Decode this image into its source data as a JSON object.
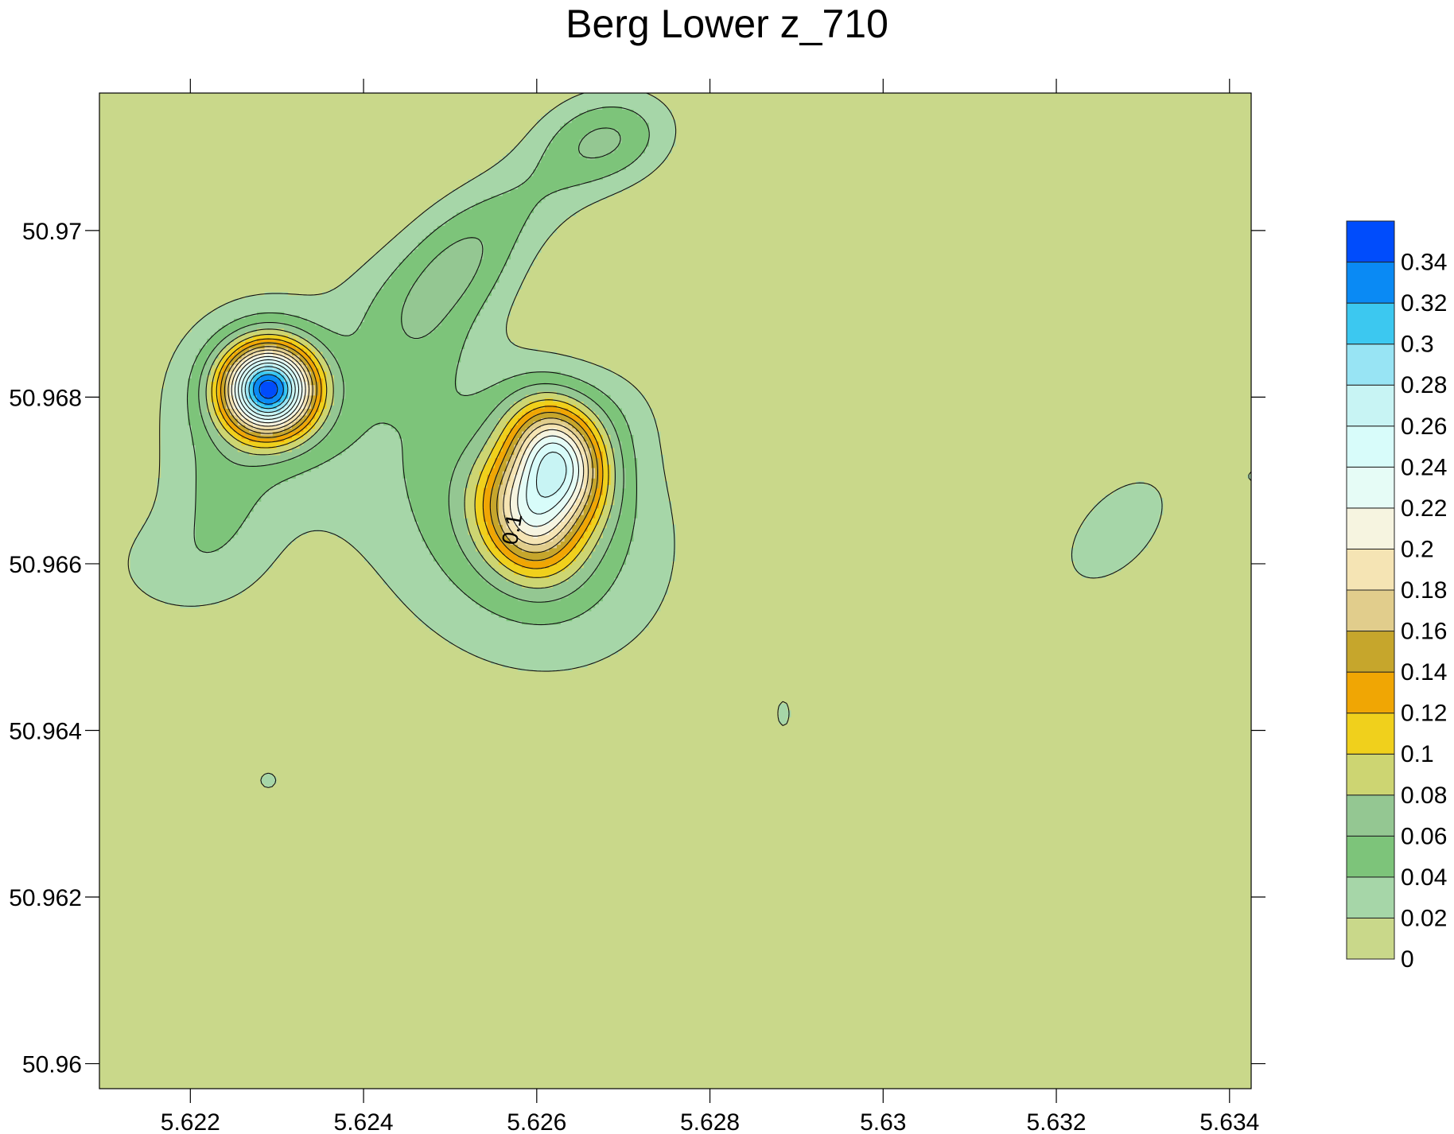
{
  "chart_data": {
    "type": "contour",
    "title": "Berg Lower z_710",
    "xlabel": "",
    "ylabel": "",
    "xlim": [
      5.62095,
      5.63425
    ],
    "ylim": [
      50.9597,
      50.97165
    ],
    "x_ticks": [
      {
        "value": 5.622,
        "label": "5.622"
      },
      {
        "value": 5.624,
        "label": "5.624"
      },
      {
        "value": 5.626,
        "label": "5.626"
      },
      {
        "value": 5.628,
        "label": "5.628"
      },
      {
        "value": 5.63,
        "label": "5.63"
      },
      {
        "value": 5.632,
        "label": "5.632"
      },
      {
        "value": 5.634,
        "label": "5.634"
      }
    ],
    "y_ticks": [
      {
        "value": 50.96,
        "label": "50.96"
      },
      {
        "value": 50.962,
        "label": "50.962"
      },
      {
        "value": 50.964,
        "label": "50.964"
      },
      {
        "value": 50.966,
        "label": "50.966"
      },
      {
        "value": 50.968,
        "label": "50.968"
      },
      {
        "value": 50.97,
        "label": "50.97"
      }
    ],
    "grid": false,
    "colorbar": {
      "position": "right",
      "levels": [
        {
          "label": "0",
          "color": "#c9d88a"
        },
        {
          "label": "0.02",
          "color": "#a6d6a8"
        },
        {
          "label": "0.04",
          "color": "#7dc47a"
        },
        {
          "label": "0.06",
          "color": "#94c792"
        },
        {
          "label": "0.08",
          "color": "#cdd572"
        },
        {
          "label": "0.1",
          "color": "#f0d01c"
        },
        {
          "label": "0.12",
          "color": "#f0a604"
        },
        {
          "label": "0.14",
          "color": "#c6a62c"
        },
        {
          "label": "0.16",
          "color": "#e1cd8c"
        },
        {
          "label": "0.18",
          "color": "#f5e4b4"
        },
        {
          "label": "0.2",
          "color": "#f6f4e0"
        },
        {
          "label": "0.22",
          "color": "#e6fcf6"
        },
        {
          "label": "0.24",
          "color": "#d8fcfa"
        },
        {
          "label": "0.26",
          "color": "#c8f4f4"
        },
        {
          "label": "0.28",
          "color": "#98e4f4"
        },
        {
          "label": "0.3",
          "color": "#3cc8f0"
        },
        {
          "label": "0.32",
          "color": "#0a8af4"
        },
        {
          "label": "0.34",
          "color": "#004cfc"
        }
      ]
    },
    "contour_labels": [
      {
        "text": "0.1",
        "x": 5.6258,
        "y": 50.9664,
        "rotation": -80
      }
    ],
    "features": [
      {
        "name": "peak-a",
        "x": 5.6229,
        "y": 50.9681,
        "peak": 0.31,
        "sx": 0.00037,
        "sy": 0.00038,
        "rot": 0
      },
      {
        "name": "halo-a",
        "x": 5.62295,
        "y": 50.96795,
        "peak": 0.04,
        "sx": 0.001,
        "sy": 0.00095,
        "rot": 0
      },
      {
        "name": "tail-a",
        "x": 5.6219,
        "y": 50.96595,
        "peak": 0.027,
        "sx": 0.0007,
        "sy": 0.0005,
        "rot": 0
      },
      {
        "name": "stem-a",
        "x": 5.62235,
        "y": 50.96685,
        "peak": 0.025,
        "sx": 0.00045,
        "sy": 0.0006,
        "rot": 0
      },
      {
        "name": "peak-b-upper",
        "x": 5.62625,
        "y": 50.96725,
        "peak": 0.18,
        "sx": 0.00035,
        "sy": 0.0005,
        "rot": 20
      },
      {
        "name": "peak-b-lower",
        "x": 5.6259,
        "y": 50.96655,
        "peak": 0.14,
        "sx": 0.00038,
        "sy": 0.0005,
        "rot": 20
      },
      {
        "name": "body-b",
        "x": 5.6258,
        "y": 50.9665,
        "peak": 0.06,
        "sx": 0.0011,
        "sy": 0.0013,
        "rot": 45
      },
      {
        "name": "spur-b",
        "x": 5.6265,
        "y": 50.9676,
        "peak": 0.025,
        "sx": 0.0006,
        "sy": 0.00045,
        "rot": 30
      },
      {
        "name": "ridge-c",
        "x": 5.6251,
        "y": 50.9696,
        "peak": 0.055,
        "sx": 0.0006,
        "sy": 0.00045,
        "rot": 50
      },
      {
        "name": "ridge-c2",
        "x": 5.62455,
        "y": 50.9688,
        "peak": 0.032,
        "sx": 0.0005,
        "sy": 0.0006,
        "rot": 20
      },
      {
        "name": "ridge-c3",
        "x": 5.6259,
        "y": 50.9704,
        "peak": 0.028,
        "sx": 0.0006,
        "sy": 0.0004,
        "rot": 30
      },
      {
        "name": "peak-d",
        "x": 5.6268,
        "y": 50.9711,
        "peak": 0.06,
        "sx": 0.00055,
        "sy": 0.0004,
        "rot": 15
      },
      {
        "name": "blob-e",
        "x": 5.6327,
        "y": 50.9664,
        "peak": 0.03,
        "sx": 0.00075,
        "sy": 0.00042,
        "rot": 50
      },
      {
        "name": "speck-f",
        "x": 5.6229,
        "y": 50.9634,
        "peak": 0.025,
        "sx": 0.00013,
        "sy": 0.00013,
        "rot": 0
      },
      {
        "name": "speck-g",
        "x": 5.62885,
        "y": 50.9642,
        "peak": 0.024,
        "sx": 0.0001,
        "sy": 0.00022,
        "rot": 0
      },
      {
        "name": "edge-h",
        "x": 5.63435,
        "y": 50.96705,
        "peak": 0.025,
        "sx": 0.00018,
        "sy": 0.00012,
        "rot": 0
      }
    ]
  }
}
